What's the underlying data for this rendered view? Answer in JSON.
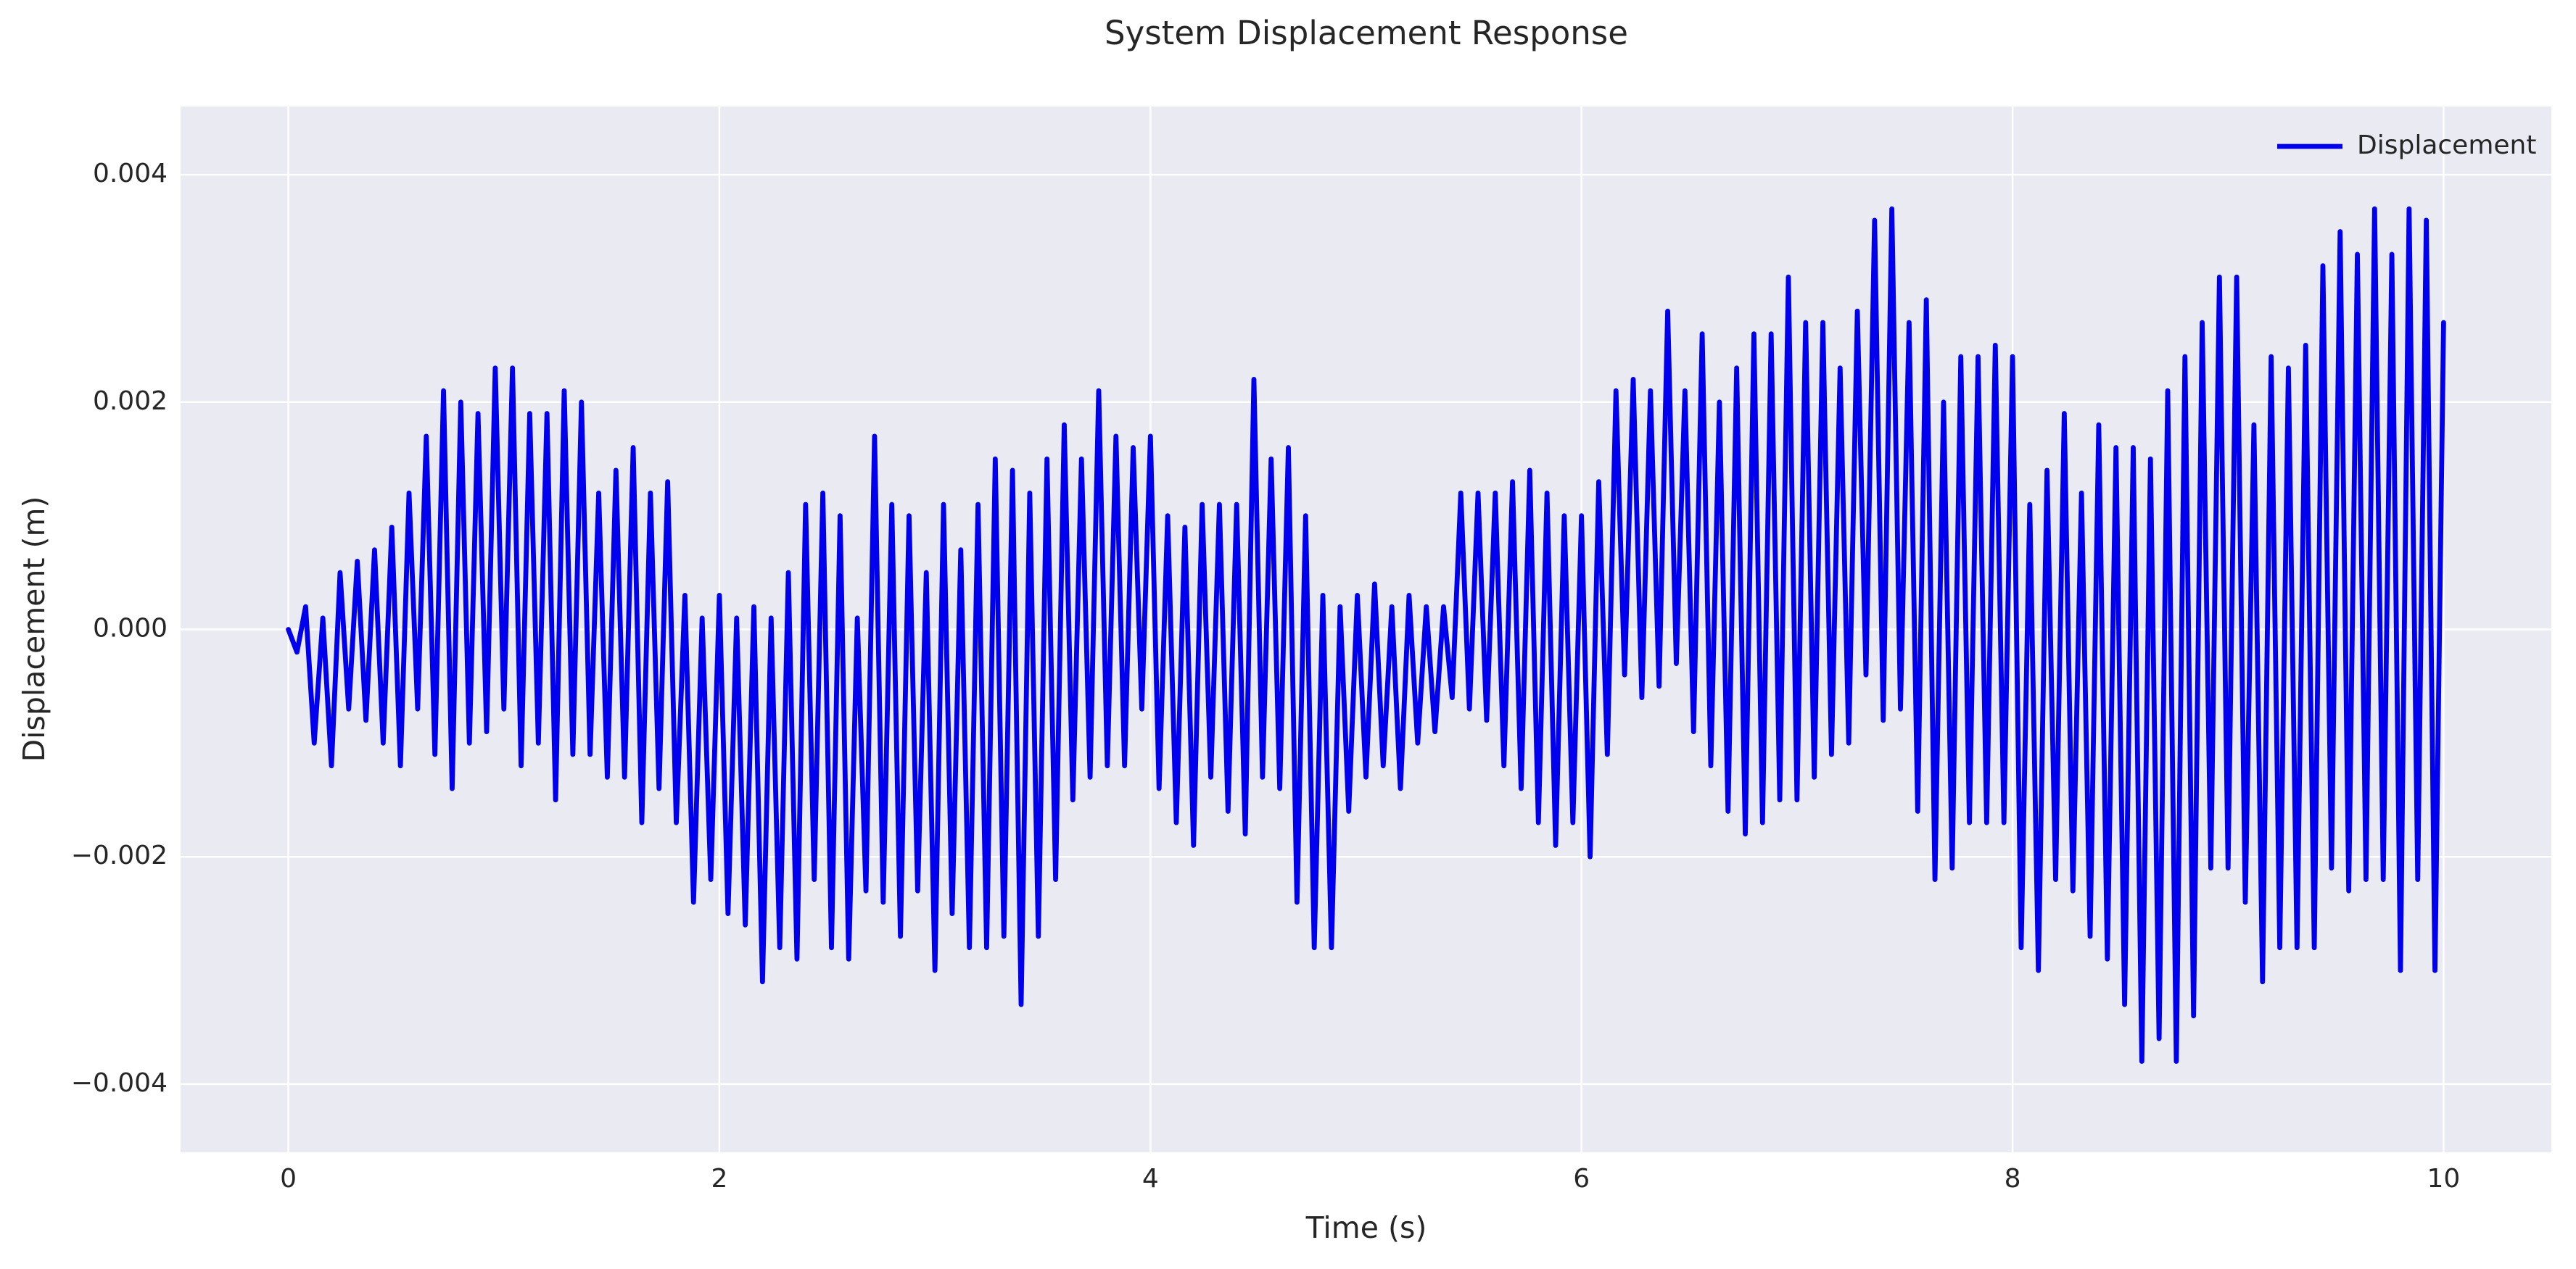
{
  "chart_data": {
    "type": "line",
    "title": "System Displacement Response",
    "x_label": "Time (s)",
    "y_label": "Displacement (m)",
    "x": [
      0,
      0.04,
      0.08,
      0.12,
      0.16,
      0.2,
      0.24,
      0.28,
      0.32,
      0.36,
      0.4,
      0.44,
      0.48,
      0.52,
      0.56,
      0.6,
      0.64,
      0.68,
      0.72,
      0.76,
      0.8,
      0.84,
      0.88,
      0.92,
      0.96,
      1,
      1.04,
      1.08,
      1.12,
      1.16,
      1.2,
      1.24,
      1.28,
      1.32,
      1.36,
      1.4,
      1.44,
      1.48,
      1.52,
      1.56,
      1.6,
      1.64,
      1.68,
      1.72,
      1.76,
      1.8,
      1.84,
      1.88,
      1.92,
      1.96,
      2,
      2.04,
      2.08,
      2.12,
      2.16,
      2.2,
      2.24,
      2.28,
      2.32,
      2.36,
      2.4,
      2.44,
      2.48,
      2.52,
      2.56,
      2.6,
      2.64,
      2.68,
      2.72,
      2.76,
      2.8,
      2.84,
      2.88,
      2.92,
      2.96,
      3,
      3.04,
      3.08,
      3.12,
      3.16,
      3.2,
      3.24,
      3.28,
      3.32,
      3.36,
      3.4,
      3.44,
      3.48,
      3.52,
      3.56,
      3.6,
      3.64,
      3.68,
      3.72,
      3.76,
      3.8,
      3.84,
      3.88,
      3.92,
      3.96,
      4,
      4.04,
      4.08,
      4.12,
      4.16,
      4.2,
      4.24,
      4.28,
      4.32,
      4.36,
      4.4,
      4.44,
      4.48,
      4.52,
      4.56,
      4.6,
      4.64,
      4.68,
      4.72,
      4.76,
      4.8,
      4.84,
      4.88,
      4.92,
      4.96,
      5,
      5.04,
      5.08,
      5.12,
      5.16,
      5.2,
      5.24,
      5.28,
      5.32,
      5.36,
      5.4,
      5.44,
      5.48,
      5.52,
      5.56,
      5.6,
      5.64,
      5.68,
      5.72,
      5.76,
      5.8,
      5.84,
      5.88,
      5.92,
      5.96,
      6,
      6.04,
      6.08,
      6.12,
      6.16,
      6.2,
      6.24,
      6.28,
      6.32,
      6.36,
      6.4,
      6.44,
      6.48,
      6.52,
      6.56,
      6.6,
      6.64,
      6.68,
      6.72,
      6.76,
      6.8,
      6.84,
      6.88,
      6.92,
      6.96,
      7,
      7.04,
      7.08,
      7.12,
      7.16,
      7.2,
      7.24,
      7.28,
      7.32,
      7.36,
      7.4,
      7.44,
      7.48,
      7.52,
      7.56,
      7.6,
      7.64,
      7.68,
      7.72,
      7.76,
      7.8,
      7.84,
      7.88,
      7.92,
      7.96,
      8,
      8.04,
      8.08,
      8.12,
      8.16,
      8.2,
      8.24,
      8.28,
      8.32,
      8.36,
      8.4,
      8.44,
      8.48,
      8.52,
      8.56,
      8.6,
      8.64,
      8.68,
      8.72,
      8.76,
      8.8,
      8.84,
      8.88,
      8.92,
      8.96,
      9,
      9.04,
      9.08,
      9.12,
      9.16,
      9.2,
      9.24,
      9.28,
      9.32,
      9.36,
      9.4,
      9.44,
      9.48,
      9.52,
      9.56,
      9.6,
      9.64,
      9.68,
      9.72,
      9.76,
      9.8,
      9.84,
      9.88,
      9.92,
      9.96,
      10
    ],
    "series": [
      {
        "name": "Displacement",
        "color": "#0000ee",
        "values": [
          0,
          -0.0002,
          0.0002,
          -0.001,
          0.0001,
          -0.0012,
          0.0005,
          -0.0007,
          0.0006,
          -0.0008,
          0.0007,
          -0.001,
          0.0009,
          -0.0012,
          0.0012,
          -0.0007,
          0.0017,
          -0.0011,
          0.0021,
          -0.0014,
          0.002,
          -0.001,
          0.0019,
          -0.0009,
          0.0023,
          -0.0007,
          0.0023,
          -0.0012,
          0.0019,
          -0.001,
          0.0019,
          -0.0015,
          0.0021,
          -0.0011,
          0.002,
          -0.0011,
          0.0012,
          -0.0013,
          0.0014,
          -0.0013,
          0.0016,
          -0.0017,
          0.0012,
          -0.0014,
          0.0013,
          -0.0017,
          0.0003,
          -0.0024,
          0.0001,
          -0.0022,
          0.0003,
          -0.0025,
          0.0001,
          -0.0026,
          0.0002,
          -0.0031,
          0.0001,
          -0.0028,
          0.0005,
          -0.0029,
          0.0011,
          -0.0022,
          0.0012,
          -0.0028,
          0.001,
          -0.0029,
          0.0001,
          -0.0023,
          0.0017,
          -0.0024,
          0.0011,
          -0.0027,
          0.001,
          -0.0023,
          0.0005,
          -0.003,
          0.0011,
          -0.0025,
          0.0007,
          -0.0028,
          0.0011,
          -0.0028,
          0.0015,
          -0.0027,
          0.0014,
          -0.0033,
          0.0012,
          -0.0027,
          0.0015,
          -0.0022,
          0.0018,
          -0.0015,
          0.0015,
          -0.0013,
          0.0021,
          -0.0012,
          0.0017,
          -0.0012,
          0.0016,
          -0.0007,
          0.0017,
          -0.0014,
          0.001,
          -0.0017,
          0.0009,
          -0.0019,
          0.0011,
          -0.0013,
          0.0011,
          -0.0016,
          0.0011,
          -0.0018,
          0.0022,
          -0.0013,
          0.0015,
          -0.0014,
          0.0016,
          -0.0024,
          0.001,
          -0.0028,
          0.0003,
          -0.0028,
          0.0002,
          -0.0016,
          0.0003,
          -0.0013,
          0.0004,
          -0.0012,
          0.0002,
          -0.0014,
          0.0003,
          -0.001,
          0.0002,
          -0.0009,
          0.0002,
          -0.0006,
          0.0012,
          -0.0007,
          0.0012,
          -0.0008,
          0.0012,
          -0.0012,
          0.0013,
          -0.0014,
          0.0014,
          -0.0017,
          0.0012,
          -0.0019,
          0.001,
          -0.0017,
          0.001,
          -0.002,
          0.0013,
          -0.0011,
          0.0021,
          -0.0004,
          0.0022,
          -0.0006,
          0.0021,
          -0.0005,
          0.0028,
          -0.0003,
          0.0021,
          -0.0009,
          0.0026,
          -0.0012,
          0.002,
          -0.0016,
          0.0023,
          -0.0018,
          0.0026,
          -0.0017,
          0.0026,
          -0.0015,
          0.0031,
          -0.0015,
          0.0027,
          -0.0013,
          0.0027,
          -0.0011,
          0.0023,
          -0.001,
          0.0028,
          -0.0004,
          0.0036,
          -0.0008,
          0.0037,
          -0.0007,
          0.0027,
          -0.0016,
          0.0029,
          -0.0022,
          0.002,
          -0.0021,
          0.0024,
          -0.0017,
          0.0024,
          -0.0017,
          0.0025,
          -0.0017,
          0.0024,
          -0.0028,
          0.0011,
          -0.003,
          0.0014,
          -0.0022,
          0.0019,
          -0.0023,
          0.0012,
          -0.0027,
          0.0018,
          -0.0029,
          0.0016,
          -0.0033,
          0.0016,
          -0.0038,
          0.0015,
          -0.0036,
          0.0021,
          -0.0038,
          0.0024,
          -0.0034,
          0.0027,
          -0.0021,
          0.0031,
          -0.0021,
          0.0031,
          -0.0024,
          0.0018,
          -0.0031,
          0.0024,
          -0.0028,
          0.0023,
          -0.0028,
          0.0025,
          -0.0028,
          0.0032,
          -0.0021,
          0.0035,
          -0.0023,
          0.0033,
          -0.0022,
          0.0037,
          -0.0022,
          0.0033,
          -0.003,
          0.0037,
          -0.0022,
          0.0036,
          -0.003,
          0.0027
        ]
      }
    ],
    "xlim": [
      -0.5,
      10.5
    ],
    "ylim": [
      -0.0046,
      0.0046
    ],
    "xticks": [
      0,
      2,
      4,
      6,
      8,
      10
    ],
    "yticks": [
      {
        "value": -0.004,
        "label": "−0.004"
      },
      {
        "value": -0.002,
        "label": "−0.002"
      },
      {
        "value": 0,
        "label": "0.000"
      },
      {
        "value": 0.002,
        "label": "0.002"
      },
      {
        "value": 0.004,
        "label": "0.004"
      }
    ],
    "grid": true,
    "legend": "upper right"
  }
}
